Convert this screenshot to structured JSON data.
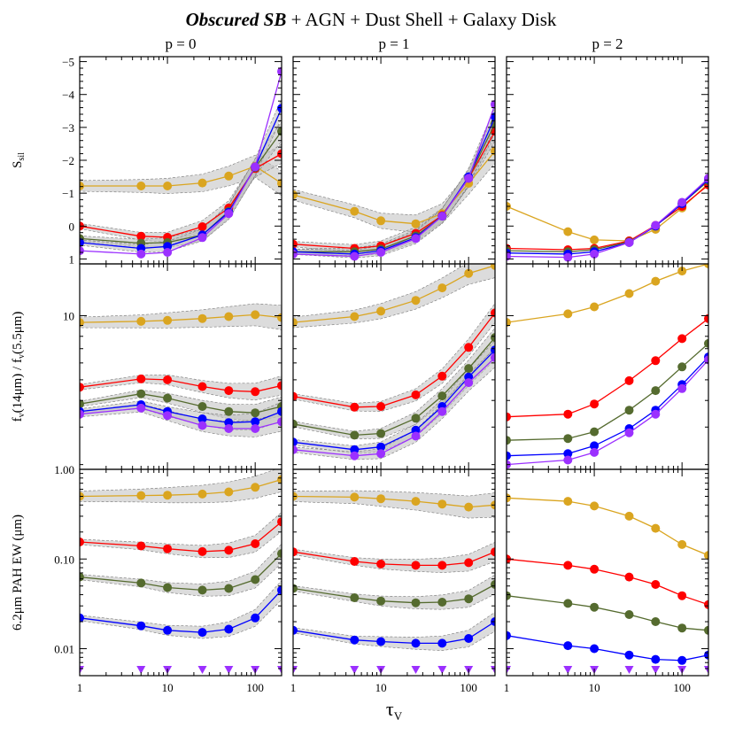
{
  "figure": {
    "title_emph": "Obscured SB",
    "title_rest": " + AGN + Dust Shell + Galaxy Disk",
    "columns": [
      "p = 0",
      "p = 1",
      "p = 2"
    ],
    "row_ylabels": [
      {
        "main": "S",
        "sub": "sil",
        "after": ""
      },
      {
        "main": "f",
        "sub": "v",
        "after": "(14μm) / f",
        "sub2": "v",
        "after2": "(5.5μm)"
      },
      {
        "main": "6.2μm PAH EW (μm)",
        "sub": "",
        "after": ""
      }
    ],
    "xlabel_main": "τ",
    "xlabel_sub": "V"
  },
  "chart_data": {
    "type": "line",
    "x": [
      1,
      5,
      10,
      25,
      50,
      100,
      200
    ],
    "xscale": "log",
    "xlim": [
      1,
      200
    ],
    "x_ticks": [
      1,
      10,
      100
    ],
    "x_tick_labels": [
      "1",
      "10",
      "100"
    ],
    "series_colors": [
      "#DAA520",
      "#FF0000",
      "#556B2F",
      "#0000FF",
      "#9B30FF"
    ],
    "band_color": "#bfbfbf",
    "rows": [
      {
        "quantity": "silicate strength",
        "yscale": "linear",
        "ylim": [
          1.15,
          -5.15
        ],
        "y_ticks": [
          -5,
          -4,
          -3,
          -2,
          -1,
          0,
          1
        ],
        "y_tick_labels": [
          "−5",
          "−4",
          "−3",
          "−2",
          "−1",
          "0",
          "1"
        ],
        "panels": [
          {
            "series": [
              {
                "values": [
                  -1.22,
                  -1.22,
                  -1.22,
                  -1.31,
                  -1.52,
                  -1.82,
                  -1.3
                ],
                "band": true
              },
              {
                "values": [
                  0.0,
                  0.31,
                  0.34,
                  0.02,
                  -0.55,
                  -1.75,
                  -2.2
                ],
                "band": true
              },
              {
                "values": [
                  0.38,
                  0.52,
                  0.5,
                  0.27,
                  -0.45,
                  -1.78,
                  -2.88
                ],
                "band": true
              },
              {
                "values": [
                  0.5,
                  0.68,
                  0.62,
                  0.27,
                  -0.42,
                  -1.8,
                  -3.58
                ],
                "band": true
              },
              {
                "values": [
                  0.75,
                  0.85,
                  0.8,
                  0.35,
                  -0.38,
                  -1.8,
                  -4.7
                ],
                "band": false
              }
            ]
          },
          {
            "series": [
              {
                "values": [
                  -0.95,
                  -0.45,
                  -0.16,
                  -0.07,
                  -0.38,
                  -1.3,
                  -2.28
                ],
                "band": true
              },
              {
                "values": [
                  0.55,
                  0.68,
                  0.6,
                  0.22,
                  -0.32,
                  -1.45,
                  -2.88
                ],
                "band": true
              },
              {
                "values": [
                  0.78,
                  0.78,
                  0.7,
                  0.3,
                  -0.3,
                  -1.47,
                  -3.12
                ],
                "band": true
              },
              {
                "values": [
                  0.78,
                  0.85,
                  0.75,
                  0.35,
                  -0.3,
                  -1.5,
                  -3.32
                ],
                "band": true
              },
              {
                "values": [
                  0.85,
                  0.92,
                  0.8,
                  0.38,
                  -0.3,
                  -1.45,
                  -3.7
                ],
                "band": false
              }
            ]
          },
          {
            "series": [
              {
                "values": [
                  -0.6,
                  0.17,
                  0.42,
                  0.45,
                  0.1,
                  -0.55,
                  -1.3
                ],
                "band": false
              },
              {
                "values": [
                  0.68,
                  0.72,
                  0.68,
                  0.45,
                  -0.02,
                  -0.6,
                  -1.25
                ],
                "band": false
              },
              {
                "values": [
                  0.75,
                  0.78,
                  0.72,
                  0.48,
                  0.0,
                  -0.68,
                  -1.38
                ],
                "band": false
              },
              {
                "values": [
                  0.82,
                  0.85,
                  0.78,
                  0.5,
                  0.0,
                  -0.68,
                  -1.42
                ],
                "band": false
              },
              {
                "values": [
                  0.92,
                  0.95,
                  0.85,
                  0.5,
                  -0.02,
                  -0.72,
                  -1.45
                ],
                "band": false
              }
            ]
          }
        ]
      },
      {
        "quantity": "continuum ratio",
        "yscale": "log",
        "ylim": [
          1.9,
          17.5
        ],
        "y_ticks": [
          10
        ],
        "y_tick_labels": [
          "10"
        ],
        "minor_ticks": [
          2,
          3,
          4,
          5,
          6,
          7,
          8,
          9
        ],
        "panels": [
          {
            "series": [
              {
                "values": [
                  9.3,
                  9.4,
                  9.5,
                  9.7,
                  9.9,
                  10.1,
                  9.8
                ],
                "band": true
              },
              {
                "values": [
                  4.62,
                  5.05,
                  5.0,
                  4.65,
                  4.45,
                  4.4,
                  4.7
                ],
                "band": true
              },
              {
                "values": [
                  3.85,
                  4.3,
                  4.1,
                  3.75,
                  3.55,
                  3.5,
                  3.75
                ],
                "band": true
              },
              {
                "values": [
                  3.55,
                  3.82,
                  3.55,
                  3.28,
                  3.15,
                  3.18,
                  3.55
                ],
                "band": true
              },
              {
                "values": [
                  3.45,
                  3.68,
                  3.4,
                  3.05,
                  2.95,
                  2.95,
                  3.18
                ],
                "band": true
              }
            ]
          },
          {
            "series": [
              {
                "values": [
                  9.3,
                  9.9,
                  10.5,
                  11.8,
                  13.5,
                  15.8,
                  17.2
                ],
                "band": true
              },
              {
                "values": [
                  4.18,
                  3.72,
                  3.75,
                  4.25,
                  5.2,
                  7.1,
                  10.3
                ],
                "band": true
              },
              {
                "values": [
                  3.1,
                  2.75,
                  2.8,
                  3.3,
                  4.2,
                  5.65,
                  7.9
                ],
                "band": true
              },
              {
                "values": [
                  2.55,
                  2.35,
                  2.42,
                  2.9,
                  3.75,
                  5.15,
                  6.9
                ],
                "band": true
              },
              {
                "values": [
                  2.35,
                  2.2,
                  2.25,
                  2.72,
                  3.55,
                  4.85,
                  6.35
                ],
                "band": true
              }
            ]
          },
          {
            "series": [
              {
                "values": [
                  9.3,
                  10.2,
                  11.0,
                  12.7,
                  14.5,
                  16.2,
                  17.5
                ],
                "band": false
              },
              {
                "values": [
                  3.35,
                  3.45,
                  3.85,
                  4.95,
                  6.15,
                  7.8,
                  9.7
                ],
                "band": false
              },
              {
                "values": [
                  2.6,
                  2.65,
                  2.85,
                  3.6,
                  4.45,
                  5.75,
                  7.4
                ],
                "band": false
              },
              {
                "values": [
                  2.2,
                  2.25,
                  2.45,
                  2.95,
                  3.6,
                  4.75,
                  6.4
                ],
                "band": false
              },
              {
                "values": [
                  2.0,
                  2.1,
                  2.28,
                  2.82,
                  3.45,
                  4.55,
                  6.2
                ],
                "band": false
              }
            ]
          }
        ]
      },
      {
        "quantity": "PAH equivalent width",
        "yscale": "log",
        "ylim": [
          0.005,
          1.0
        ],
        "y_ticks": [
          0.01,
          0.1,
          1.0
        ],
        "y_tick_labels": [
          "0.01",
          "0.10",
          "1.00"
        ],
        "minor_ticks": [
          0.006,
          0.007,
          0.008,
          0.009,
          0.02,
          0.03,
          0.04,
          0.05,
          0.06,
          0.07,
          0.08,
          0.09,
          0.2,
          0.3,
          0.4,
          0.5,
          0.6,
          0.7,
          0.8,
          0.9
        ],
        "upper_limit_series": 4,
        "upper_limit_value": 0.005,
        "panels": [
          {
            "series": [
              {
                "values": [
                  0.5,
                  0.51,
                  0.515,
                  0.53,
                  0.56,
                  0.63,
                  0.77
                ],
                "band": true
              },
              {
                "values": [
                  0.155,
                  0.14,
                  0.13,
                  0.121,
                  0.125,
                  0.148,
                  0.26
                ],
                "band": true
              },
              {
                "values": [
                  0.063,
                  0.054,
                  0.048,
                  0.045,
                  0.047,
                  0.059,
                  0.115
                ],
                "band": true
              },
              {
                "values": [
                  0.022,
                  0.018,
                  0.016,
                  0.0152,
                  0.0165,
                  0.022,
                  0.045
                ],
                "band": true
              },
              {
                "values": [
                  0.005,
                  0.005,
                  0.005,
                  0.005,
                  0.005,
                  0.005,
                  0.005
                ],
                "band": false
              }
            ]
          },
          {
            "series": [
              {
                "values": [
                  0.5,
                  0.49,
                  0.47,
                  0.44,
                  0.41,
                  0.38,
                  0.4
                ],
                "band": true
              },
              {
                "values": [
                  0.12,
                  0.094,
                  0.088,
                  0.085,
                  0.085,
                  0.091,
                  0.12
                ],
                "band": true
              },
              {
                "values": [
                  0.047,
                  0.037,
                  0.034,
                  0.0325,
                  0.033,
                  0.036,
                  0.052
                ],
                "band": true
              },
              {
                "values": [
                  0.016,
                  0.0125,
                  0.012,
                  0.0115,
                  0.0115,
                  0.013,
                  0.02
                ],
                "band": true
              },
              {
                "values": [
                  0.005,
                  0.005,
                  0.005,
                  0.005,
                  0.005,
                  0.005,
                  0.005
                ],
                "band": false
              }
            ]
          },
          {
            "series": [
              {
                "values": [
                  0.48,
                  0.44,
                  0.39,
                  0.3,
                  0.22,
                  0.145,
                  0.11
                ],
                "band": false
              },
              {
                "values": [
                  0.1,
                  0.085,
                  0.077,
                  0.063,
                  0.052,
                  0.039,
                  0.031
                ],
                "band": false
              },
              {
                "values": [
                  0.039,
                  0.032,
                  0.029,
                  0.024,
                  0.02,
                  0.017,
                  0.016
                ],
                "band": false
              },
              {
                "values": [
                  0.014,
                  0.0108,
                  0.01,
                  0.0085,
                  0.0076,
                  0.0074,
                  0.0085
                ],
                "band": false
              },
              {
                "values": [
                  0.005,
                  0.005,
                  0.005,
                  0.005,
                  0.005,
                  0.005,
                  0.005
                ],
                "band": false
              }
            ]
          }
        ]
      }
    ]
  }
}
